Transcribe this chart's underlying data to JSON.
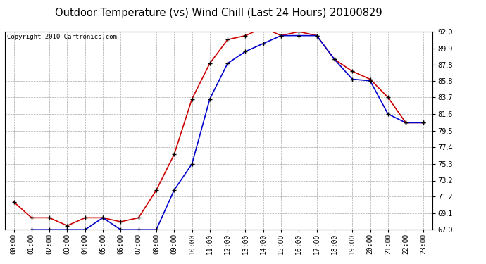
{
  "title": "Outdoor Temperature (vs) Wind Chill (Last 24 Hours) 20100829",
  "copyright": "Copyright 2010 Cartronics.com",
  "x_labels": [
    "00:00",
    "01:00",
    "02:00",
    "03:00",
    "04:00",
    "05:00",
    "06:00",
    "07:00",
    "08:00",
    "09:00",
    "10:00",
    "11:00",
    "12:00",
    "13:00",
    "14:00",
    "15:00",
    "16:00",
    "17:00",
    "18:00",
    "19:00",
    "20:00",
    "21:00",
    "22:00",
    "23:00"
  ],
  "temp": [
    70.5,
    68.5,
    68.5,
    67.5,
    68.5,
    68.5,
    68.0,
    68.5,
    72.0,
    76.5,
    83.5,
    88.0,
    91.0,
    91.5,
    92.5,
    91.5,
    92.0,
    91.5,
    88.5,
    87.0,
    86.0,
    83.7,
    80.5,
    80.5
  ],
  "wind_chill": [
    null,
    67.0,
    67.0,
    67.0,
    67.0,
    68.5,
    67.0,
    67.0,
    67.0,
    72.0,
    75.3,
    83.5,
    88.0,
    89.5,
    90.5,
    91.5,
    91.5,
    91.5,
    88.5,
    86.0,
    85.8,
    81.6,
    80.5,
    80.5
  ],
  "temp_color": "#cc0000",
  "wind_chill_color": "#0000cc",
  "bg_color": "#ffffff",
  "plot_bg_color": "#ffffff",
  "grid_color": "#aaaaaa",
  "ylim": [
    67.0,
    92.0
  ],
  "yticks": [
    67.0,
    69.1,
    71.2,
    73.2,
    75.3,
    77.4,
    79.5,
    81.6,
    83.7,
    85.8,
    87.8,
    89.9,
    92.0
  ],
  "marker": "+",
  "marker_color": "#000000",
  "marker_size": 4,
  "linewidth": 1.2,
  "title_fontsize": 10.5,
  "copyright_fontsize": 6.5,
  "tick_fontsize": 7,
  "ylabel_fontsize": 7
}
